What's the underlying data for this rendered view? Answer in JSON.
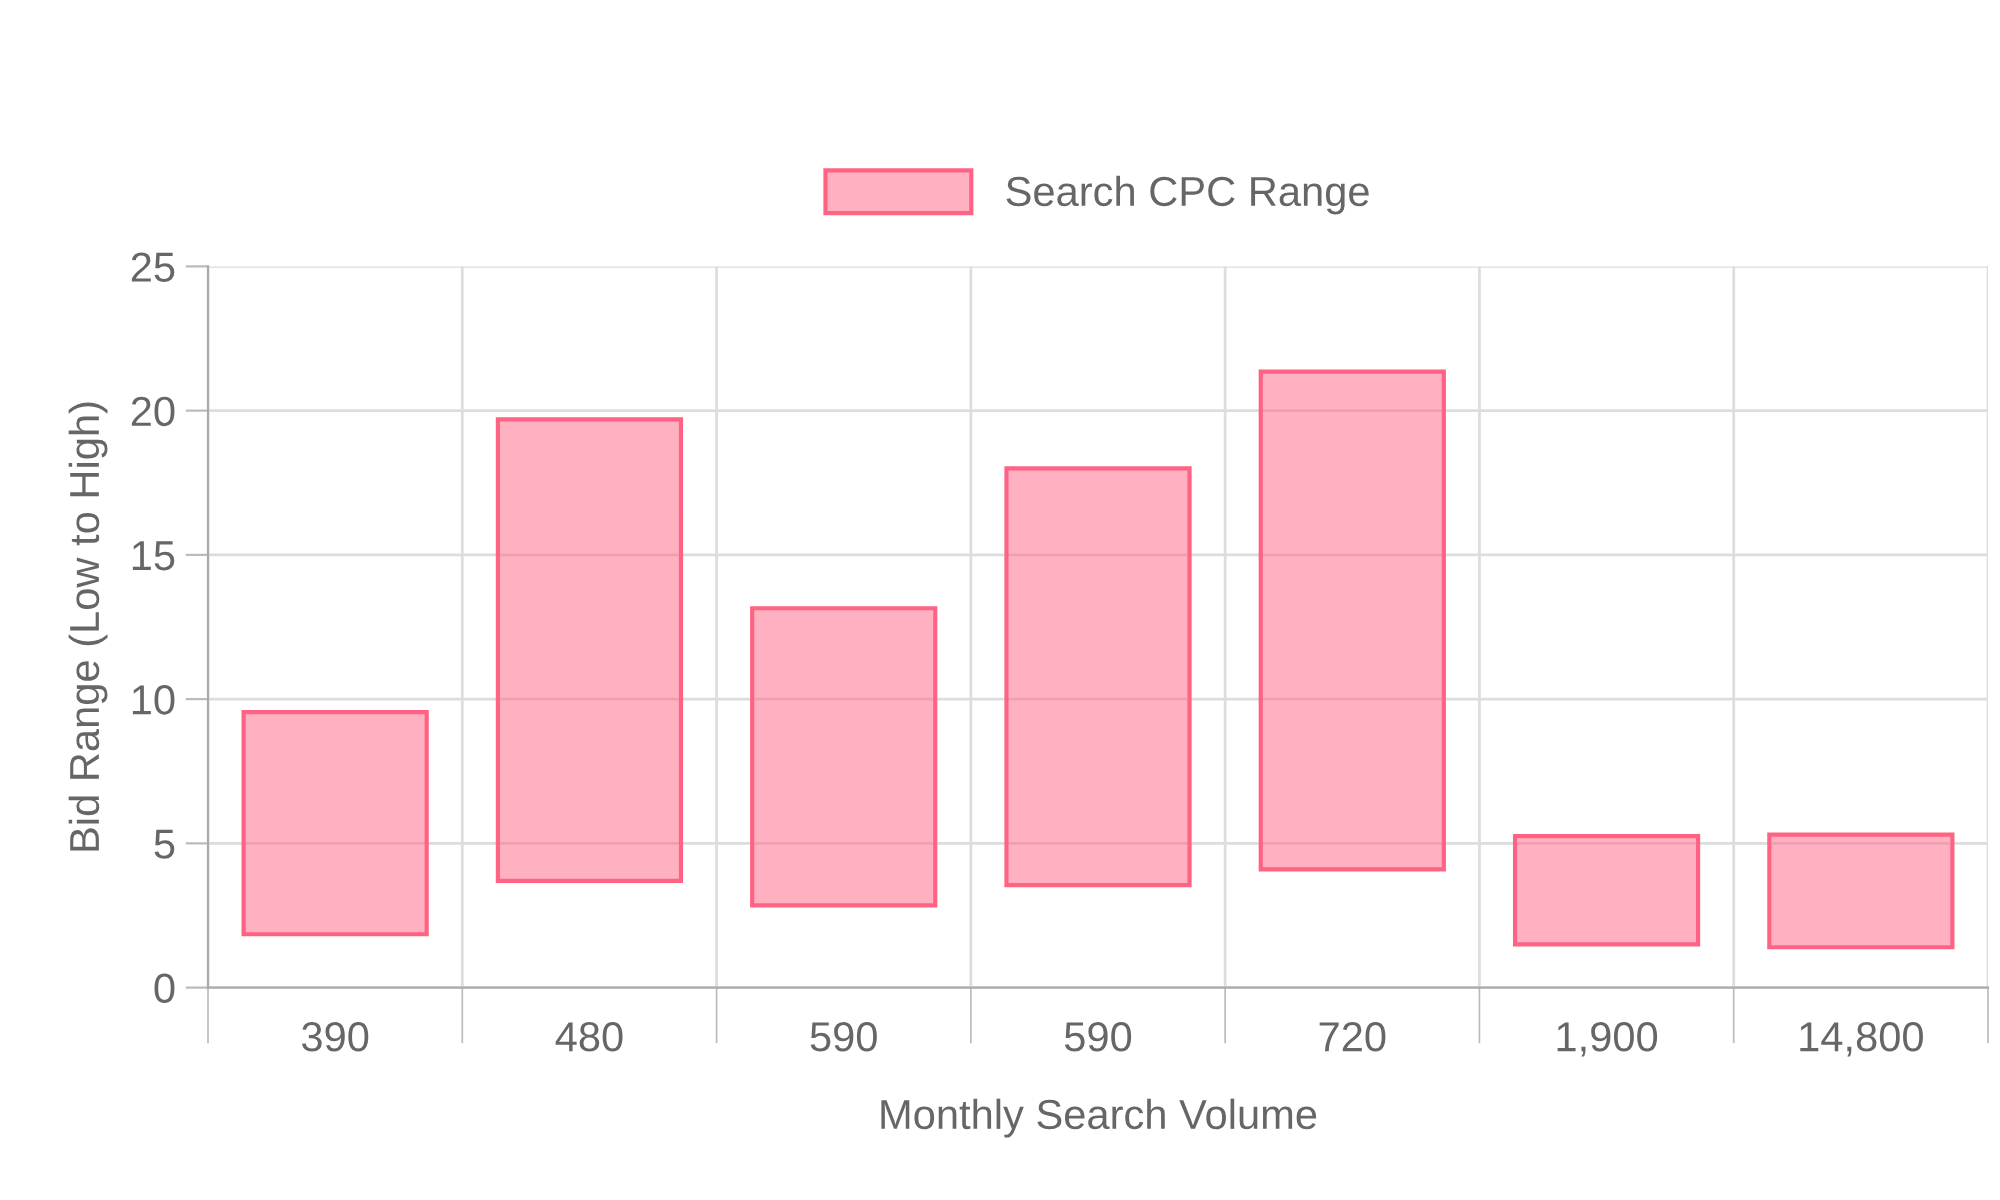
{
  "chart_data": {
    "type": "bar",
    "categories": [
      "390",
      "480",
      "590",
      "590",
      "720",
      "1,900",
      "14,800"
    ],
    "series": [
      {
        "name": "Search CPC Range",
        "color": "#ff6384",
        "base": [
          1.85,
          3.7,
          2.85,
          3.55,
          4.1,
          1.5,
          1.4
        ],
        "values": [
          7.7,
          16.0,
          10.3,
          14.45,
          17.25,
          3.75,
          3.9
        ]
      }
    ],
    "xlabel": "Monthly Search Volume",
    "ylabel": "Bid Range (Low to High)",
    "ylim": [
      0,
      25
    ],
    "yticks": [
      0,
      5,
      10,
      15,
      20,
      25
    ],
    "grid": true,
    "legend": "top"
  }
}
